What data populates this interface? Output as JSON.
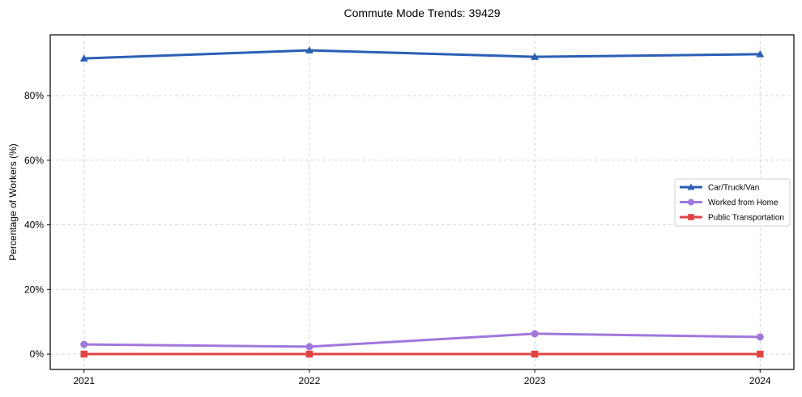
{
  "chart_data": {
    "type": "line",
    "title": "Commute Mode Trends: 39429",
    "xlabel": "",
    "ylabel": "Percentage of Workers (%)",
    "categories": [
      "2021",
      "2022",
      "2023",
      "2024"
    ],
    "x": [
      2021,
      2022,
      2023,
      2024
    ],
    "series": [
      {
        "name": "Car/Truck/Van",
        "values": [
          91.5,
          94.0,
          92.0,
          92.8
        ],
        "color": "#2b5fb5",
        "marker": "triangle"
      },
      {
        "name": "Worked from Home",
        "values": [
          3.0,
          2.3,
          6.3,
          5.3
        ],
        "color": "#a078dc",
        "marker": "circle"
      },
      {
        "name": "Public Transportation",
        "values": [
          0.0,
          0.0,
          0.0,
          0.0
        ],
        "color": "#e04444",
        "marker": "square"
      }
    ],
    "yticks": [
      0,
      20,
      40,
      60,
      80
    ],
    "ytick_labels": [
      "0%",
      "20%",
      "40%",
      "60%",
      "80%"
    ],
    "ylim": [
      -4.75,
      98.8
    ],
    "xlim": [
      2020.85,
      2024.15
    ],
    "grid": true,
    "legend_position": "center right"
  }
}
